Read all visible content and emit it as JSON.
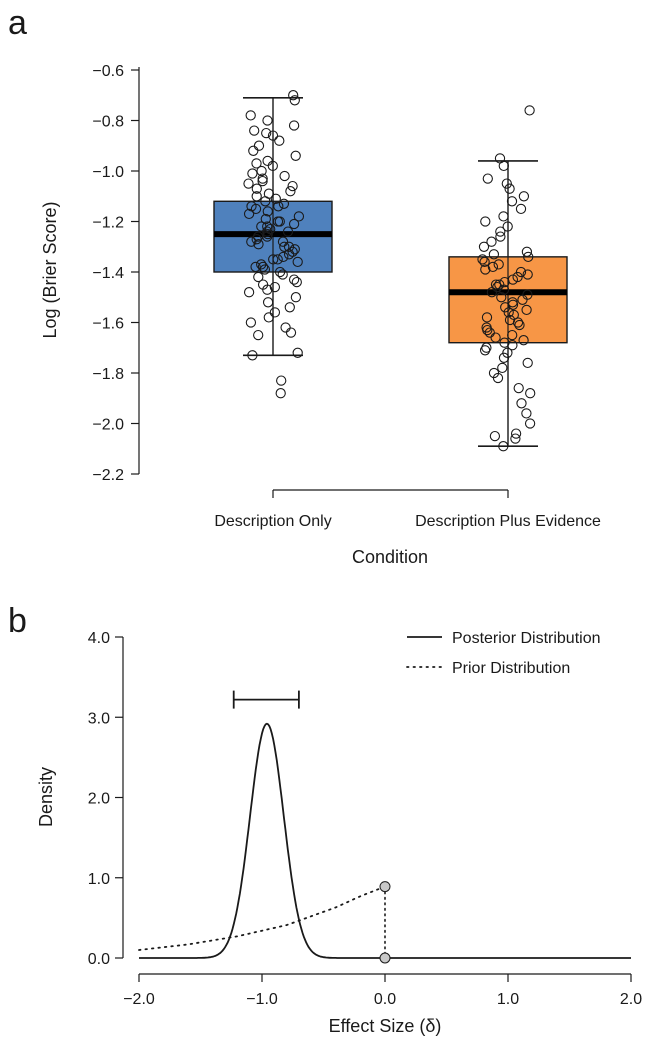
{
  "figure": {
    "panel_a_letter": "a",
    "panel_b_letter": "b"
  },
  "chart_data": [
    {
      "type": "box",
      "title": "",
      "xlabel": "Condition",
      "ylabel": "Log (Brier Score)",
      "categories": [
        "Description Only",
        "Description Plus Evidence"
      ],
      "ylim": [
        -2.2,
        -0.6
      ],
      "yticks": [
        -0.6,
        -0.8,
        -1.0,
        -1.2,
        -1.4,
        -1.6,
        -1.8,
        -2.0,
        -2.2
      ],
      "ytick_labels": [
        "−0.6",
        "−0.8",
        "−1.0",
        "−1.2",
        "−1.4",
        "−1.6",
        "−1.8",
        "−2.0",
        "−2.2"
      ],
      "grid": false,
      "boxes": [
        {
          "category": "Description Only",
          "color": "#4f81bd",
          "whisker_low": -1.73,
          "q1": -1.4,
          "median": -1.25,
          "q3": -1.12,
          "whisker_high": -0.71,
          "points": [
            -0.7,
            -0.72,
            -0.78,
            -0.8,
            -0.82,
            -0.84,
            -0.85,
            -0.86,
            -0.88,
            -0.9,
            -0.92,
            -0.94,
            -0.96,
            -0.97,
            -0.98,
            -1.0,
            -1.01,
            -1.02,
            -1.03,
            -1.04,
            -1.05,
            -1.06,
            -1.07,
            -1.08,
            -1.09,
            -1.1,
            -1.11,
            -1.12,
            -1.13,
            -1.14,
            -1.14,
            -1.15,
            -1.16,
            -1.17,
            -1.18,
            -1.19,
            -1.2,
            -1.2,
            -1.21,
            -1.22,
            -1.22,
            -1.23,
            -1.24,
            -1.24,
            -1.25,
            -1.26,
            -1.26,
            -1.27,
            -1.28,
            -1.28,
            -1.29,
            -1.3,
            -1.3,
            -1.31,
            -1.32,
            -1.33,
            -1.34,
            -1.35,
            -1.35,
            -1.36,
            -1.37,
            -1.38,
            -1.38,
            -1.39,
            -1.4,
            -1.41,
            -1.42,
            -1.43,
            -1.44,
            -1.45,
            -1.46,
            -1.47,
            -1.48,
            -1.5,
            -1.52,
            -1.54,
            -1.56,
            -1.58,
            -1.6,
            -1.62,
            -1.64,
            -1.65,
            -1.72,
            -1.73,
            -1.83,
            -1.88
          ]
        },
        {
          "category": "Description Plus Evidence",
          "color": "#f79646",
          "whisker_low": -2.09,
          "q1": -1.68,
          "median": -1.48,
          "q3": -1.34,
          "whisker_high": -0.96,
          "points": [
            -0.76,
            -0.95,
            -0.98,
            -1.03,
            -1.05,
            -1.07,
            -1.1,
            -1.12,
            -1.15,
            -1.18,
            -1.2,
            -1.22,
            -1.24,
            -1.26,
            -1.28,
            -1.3,
            -1.32,
            -1.33,
            -1.34,
            -1.35,
            -1.36,
            -1.37,
            -1.38,
            -1.39,
            -1.4,
            -1.41,
            -1.42,
            -1.43,
            -1.44,
            -1.45,
            -1.45,
            -1.46,
            -1.47,
            -1.48,
            -1.49,
            -1.5,
            -1.51,
            -1.52,
            -1.53,
            -1.54,
            -1.55,
            -1.56,
            -1.57,
            -1.58,
            -1.59,
            -1.6,
            -1.61,
            -1.62,
            -1.63,
            -1.64,
            -1.65,
            -1.66,
            -1.67,
            -1.68,
            -1.69,
            -1.7,
            -1.71,
            -1.72,
            -1.74,
            -1.76,
            -1.78,
            -1.8,
            -1.82,
            -1.86,
            -1.88,
            -1.92,
            -1.96,
            -2.0,
            -2.04,
            -2.05,
            -2.06,
            -2.09
          ]
        }
      ]
    },
    {
      "type": "line",
      "title": "",
      "xlabel": "Effect Size (δ)",
      "ylabel": "Density",
      "xlim": [
        -2.0,
        2.0
      ],
      "ylim": [
        0,
        4.0
      ],
      "xticks": [
        -2.0,
        -1.0,
        0.0,
        1.0,
        2.0
      ],
      "xtick_labels": [
        "−2.0",
        "−1.0",
        "0.0",
        "1.0",
        "2.0"
      ],
      "yticks": [
        0.0,
        1.0,
        2.0,
        3.0,
        4.0
      ],
      "ytick_labels": [
        "0.0",
        "1.0",
        "2.0",
        "3.0",
        "4.0"
      ],
      "grid": false,
      "legend_position": "top-right",
      "series": [
        {
          "name": "Posterior Distribution",
          "style": "solid",
          "peak_x": -0.96,
          "peak_y": 2.92,
          "sd": 0.137,
          "support": [
            -2.0,
            2.0
          ]
        },
        {
          "name": "Prior Distribution",
          "style": "dotted",
          "x": [
            -2.0,
            -1.6,
            -1.2,
            -0.8,
            -0.4,
            -0.2,
            0.0
          ],
          "y": [
            0.1,
            0.17,
            0.27,
            0.41,
            0.63,
            0.77,
            0.89
          ]
        }
      ],
      "credible_interval": {
        "low": -1.23,
        "high": -0.7,
        "height": 3.22
      },
      "markers": [
        {
          "x": 0.0,
          "y": 0.89,
          "color": "#c8c8c8"
        },
        {
          "x": 0.0,
          "y": 0.0,
          "color": "#c8c8c8"
        }
      ]
    }
  ]
}
